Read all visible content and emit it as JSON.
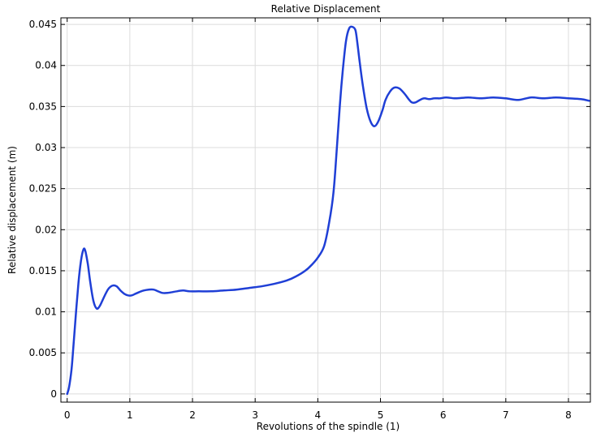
{
  "chart_data": {
    "type": "line",
    "title": "Relative Displacement",
    "xlabel": "Revolutions of the spindle (1)",
    "ylabel": "Relative displacement (m)",
    "xlim": [
      -0.1,
      8.35
    ],
    "ylim": [
      -0.001,
      0.0458
    ],
    "xticks": [
      "0",
      "1",
      "2",
      "3",
      "4",
      "5",
      "6",
      "7",
      "8"
    ],
    "xtick_values": [
      0,
      1,
      2,
      3,
      4,
      5,
      6,
      7,
      8
    ],
    "yticks": [
      "0",
      "0.005",
      "0.01",
      "0.015",
      "0.02",
      "0.025",
      "0.03",
      "0.035",
      "0.04",
      "0.045"
    ],
    "ytick_values": [
      0,
      0.005,
      0.01,
      0.015,
      0.02,
      0.025,
      0.03,
      0.035,
      0.04,
      0.045
    ],
    "grid": true,
    "line_color": "#1f3fd6",
    "series": [
      {
        "x": [
          0,
          0.03,
          0.07,
          0.1,
          0.14,
          0.18,
          0.22,
          0.26,
          0.29,
          0.33,
          0.37,
          0.42,
          0.47,
          0.52,
          0.57,
          0.62,
          0.67,
          0.73,
          0.79,
          0.85,
          0.91,
          0.97,
          1.03,
          1.09,
          1.15,
          1.22,
          1.3,
          1.38,
          1.45,
          1.52,
          1.6,
          1.68,
          1.75,
          1.85,
          1.95,
          2.1,
          2.3,
          2.5,
          2.7,
          2.9,
          3.1,
          3.3,
          3.5,
          3.65,
          3.8,
          3.9,
          4.0,
          4.1,
          4.18,
          4.25,
          4.3,
          4.35,
          4.4,
          4.45,
          4.5,
          4.55,
          4.6,
          4.63,
          4.67,
          4.72,
          4.78,
          4.84,
          4.9,
          4.96,
          5.03,
          5.08,
          5.15,
          5.22,
          5.3,
          5.38,
          5.45,
          5.5,
          5.56,
          5.63,
          5.7,
          5.78,
          5.86,
          5.95,
          6.05,
          6.2,
          6.4,
          6.6,
          6.8,
          7.0,
          7.2,
          7.4,
          7.6,
          7.8,
          8.0,
          8.2,
          8.33
        ],
        "y": [
          0,
          0.0008,
          0.003,
          0.0058,
          0.0098,
          0.0135,
          0.0162,
          0.0176,
          0.0174,
          0.0158,
          0.0135,
          0.0113,
          0.0104,
          0.0107,
          0.0115,
          0.0123,
          0.0129,
          0.0132,
          0.0131,
          0.0126,
          0.0122,
          0.012,
          0.012,
          0.0122,
          0.0124,
          0.0126,
          0.0127,
          0.0127,
          0.0125,
          0.0123,
          0.0123,
          0.0124,
          0.0125,
          0.0126,
          0.0125,
          0.0125,
          0.0125,
          0.0126,
          0.0127,
          0.0129,
          0.0131,
          0.0134,
          0.0138,
          0.0143,
          0.015,
          0.0157,
          0.0166,
          0.018,
          0.0208,
          0.0245,
          0.0295,
          0.035,
          0.0395,
          0.043,
          0.0445,
          0.0447,
          0.0443,
          0.0428,
          0.0403,
          0.0375,
          0.0348,
          0.0332,
          0.0326,
          0.0331,
          0.0345,
          0.0358,
          0.0368,
          0.0373,
          0.0372,
          0.0366,
          0.0359,
          0.0355,
          0.0355,
          0.0358,
          0.036,
          0.0359,
          0.036,
          0.036,
          0.0361,
          0.036,
          0.0361,
          0.036,
          0.0361,
          0.036,
          0.0358,
          0.0361,
          0.036,
          0.0361,
          0.036,
          0.0359,
          0.0357
        ]
      }
    ]
  }
}
